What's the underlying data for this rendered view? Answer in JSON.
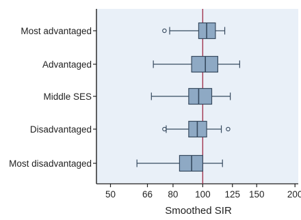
{
  "chart_data": {
    "type": "boxplot",
    "orientation": "horizontal",
    "title": "",
    "xlabel": "Smoothed SIR",
    "ylabel": "",
    "xscale": "log",
    "xlim": [
      45,
      205
    ],
    "xticks": [
      50,
      66,
      80,
      100,
      125,
      150,
      200
    ],
    "reference_line": 100,
    "grid": false,
    "legend": "none",
    "colors": {
      "panel_bg": "#e9f0f8",
      "box_fill": "#8ea9c4",
      "box_stroke": "#36495e",
      "reference_line": "#a0344f",
      "axis": "#1f1f1f"
    },
    "categories": [
      "Most advantaged",
      "Advantaged",
      "Middle SES",
      "Disadvantaged",
      "Most disadvantaged"
    ],
    "boxes": [
      {
        "label": "Most advantaged",
        "whisker_low": 78,
        "q1": 97,
        "median": 103,
        "q3": 110,
        "whisker_high": 118,
        "outliers": [
          75
        ]
      },
      {
        "label": "Advantaged",
        "whisker_low": 69,
        "q1": 92,
        "median": 102,
        "q3": 112,
        "whisker_high": 132,
        "outliers": []
      },
      {
        "label": "Middle SES",
        "whisker_low": 68,
        "q1": 90,
        "median": 97,
        "q3": 107,
        "whisker_high": 123,
        "outliers": []
      },
      {
        "label": "Disadvantaged",
        "whisker_low": 76,
        "q1": 90,
        "median": 96,
        "q3": 103,
        "whisker_high": 115,
        "outliers": [
          75,
          121
        ]
      },
      {
        "label": "Most disadvantaged",
        "whisker_low": 61,
        "q1": 84,
        "median": 92,
        "q3": 100,
        "whisker_high": 116,
        "outliers": []
      }
    ]
  }
}
